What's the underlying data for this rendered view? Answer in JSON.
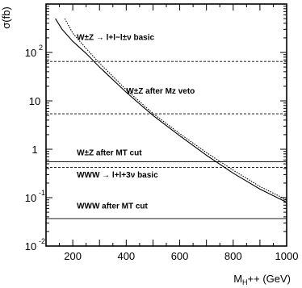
{
  "chart_data": {
    "type": "line",
    "xlabel_main": "M",
    "xlabel_sub": "H",
    "xlabel_rest": "++ (GeV)",
    "ylabel": "σ(fb)",
    "xlim": [
      100,
      1000
    ],
    "ylim_log10": [
      -2,
      3
    ],
    "yscale": "log",
    "x_ticks": [
      {
        "value": 200,
        "label": "200"
      },
      {
        "value": 400,
        "label": "400"
      },
      {
        "value": 600,
        "label": "600"
      },
      {
        "value": 800,
        "label": "800"
      },
      {
        "value": 1000,
        "label": "1000"
      }
    ],
    "y_ticks": [
      {
        "exp": 2,
        "base": "10",
        "sup": "2"
      },
      {
        "exp": 1,
        "base": "10",
        "sup": ""
      },
      {
        "exp": 0,
        "base": "1",
        "sup": ""
      },
      {
        "exp": -1,
        "base": "10",
        "sup": "-1"
      },
      {
        "exp": -2,
        "base": "10",
        "sup": "-2"
      }
    ],
    "curves": [
      {
        "style": "solid",
        "x": [
          135,
          160,
          200,
          250,
          300,
          400,
          500,
          600,
          700,
          800,
          900,
          1000
        ],
        "y": [
          500,
          300,
          170,
          95,
          50,
          15,
          5,
          1.9,
          0.75,
          0.32,
          0.15,
          0.08
        ]
      },
      {
        "style": "dotted",
        "x": [
          170,
          200,
          250,
          300,
          400,
          500,
          600,
          700,
          800,
          900,
          1000
        ],
        "y": [
          500,
          250,
          120,
          60,
          17,
          5.5,
          2.1,
          0.85,
          0.37,
          0.17,
          0.09
        ]
      }
    ],
    "horizontal_lines": [
      {
        "y": 65,
        "style": "dashed",
        "label_id": "wz_basic"
      },
      {
        "y": 5.4,
        "style": "dashed",
        "label_id": "wz_mz_veto"
      },
      {
        "y": 0.55,
        "style": "solid",
        "label_id": "wz_mt_cut"
      },
      {
        "y": 0.42,
        "style": "dashed",
        "label_id": "www_basic"
      },
      {
        "y": 0.037,
        "style": "solid",
        "label_id": "www_mt_cut"
      }
    ],
    "annotations": [
      {
        "id": "wz_basic",
        "text": "W±Z → l+l−l±ν basic",
        "x": 215,
        "y": 180
      },
      {
        "id": "wz_mz_veto",
        "text": "W±Z after Mz veto",
        "x": 400,
        "y": 14
      },
      {
        "id": "wz_mt_cut",
        "text": "W±Z after MT cut",
        "x": 215,
        "y": 0.75
      },
      {
        "id": "www_basic",
        "text": "WWW → l+l+3ν basic",
        "x": 215,
        "y": 0.26
      },
      {
        "id": "www_mt_cut",
        "text": "WWW after MT cut",
        "x": 215,
        "y": 0.06
      }
    ]
  }
}
